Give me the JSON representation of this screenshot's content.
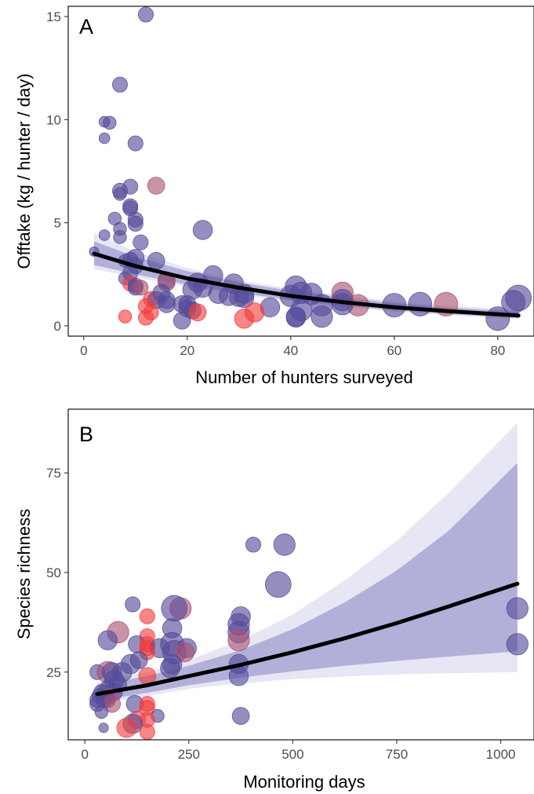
{
  "colors": {
    "point_blue": "#544a9a",
    "point_red": "#f23b3b",
    "point_mix": "#a9526f",
    "ci_outer": "#e7e6f5",
    "ci_inner": "#b2b0d8",
    "fit_line": "#000000"
  },
  "chart_data": [
    {
      "type": "scatter",
      "panel_label": "A",
      "xlabel": "Number of hunters surveyed",
      "ylabel": "Offtake (kg / hunter / day)",
      "xlim": [
        -3,
        87
      ],
      "ylim": [
        -0.5,
        15.5
      ],
      "xticks": [
        0,
        20,
        40,
        60,
        80
      ],
      "yticks": [
        0,
        5,
        10,
        15
      ],
      "grid": false,
      "points": [
        {
          "x": 12,
          "y": 15.1,
          "r": 2,
          "c": "b"
        },
        {
          "x": 7,
          "y": 11.7,
          "r": 2,
          "c": "b"
        },
        {
          "x": 4,
          "y": 9.9,
          "r": 1,
          "c": "b"
        },
        {
          "x": 5,
          "y": 9.85,
          "r": 1.5,
          "c": "b"
        },
        {
          "x": 4,
          "y": 9.1,
          "r": 1,
          "c": "b"
        },
        {
          "x": 10,
          "y": 8.85,
          "r": 2,
          "c": "b"
        },
        {
          "x": 9,
          "y": 6.75,
          "r": 2,
          "c": "b"
        },
        {
          "x": 14,
          "y": 6.8,
          "r": 2.5,
          "c": "m"
        },
        {
          "x": 7,
          "y": 6.55,
          "r": 2,
          "c": "b"
        },
        {
          "x": 7,
          "y": 6.4,
          "r": 1.5,
          "c": "b"
        },
        {
          "x": 9,
          "y": 5.8,
          "r": 2,
          "c": "b"
        },
        {
          "x": 9,
          "y": 5.7,
          "r": 2,
          "c": "b"
        },
        {
          "x": 6,
          "y": 5.2,
          "r": 1.5,
          "c": "b"
        },
        {
          "x": 10,
          "y": 5.15,
          "r": 2,
          "c": "b"
        },
        {
          "x": 10,
          "y": 4.95,
          "r": 2,
          "c": "b"
        },
        {
          "x": 7,
          "y": 4.7,
          "r": 1.5,
          "c": "b"
        },
        {
          "x": 23,
          "y": 4.65,
          "r": 3,
          "c": "b"
        },
        {
          "x": 4,
          "y": 4.4,
          "r": 1,
          "c": "b"
        },
        {
          "x": 7,
          "y": 4.3,
          "r": 1.5,
          "c": "b"
        },
        {
          "x": 11,
          "y": 4.05,
          "r": 2,
          "c": "b"
        },
        {
          "x": 2,
          "y": 3.6,
          "r": 0.7,
          "c": "b"
        },
        {
          "x": 10,
          "y": 3.3,
          "r": 2.5,
          "c": "b"
        },
        {
          "x": 8,
          "y": 3.15,
          "r": 1.5,
          "c": "b"
        },
        {
          "x": 9,
          "y": 3.2,
          "r": 2,
          "c": "b"
        },
        {
          "x": 14,
          "y": 3.15,
          "r": 2.5,
          "c": "b"
        },
        {
          "x": 10,
          "y": 2.9,
          "r": 2,
          "c": "b"
        },
        {
          "x": 9,
          "y": 2.55,
          "r": 2,
          "c": "b"
        },
        {
          "x": 25,
          "y": 2.45,
          "r": 3,
          "c": "b"
        },
        {
          "x": 8,
          "y": 2.3,
          "r": 1.5,
          "c": "b"
        },
        {
          "x": 16,
          "y": 2.2,
          "r": 2.5,
          "c": "b"
        },
        {
          "x": 16,
          "y": 2.1,
          "r": 2.5,
          "c": "m"
        },
        {
          "x": 22,
          "y": 2.1,
          "r": 3,
          "c": "b"
        },
        {
          "x": 9,
          "y": 2.05,
          "r": 2,
          "c": "r"
        },
        {
          "x": 29,
          "y": 2.05,
          "r": 3,
          "c": "b"
        },
        {
          "x": 10,
          "y": 1.95,
          "r": 2,
          "c": "b"
        },
        {
          "x": 10,
          "y": 1.85,
          "r": 2,
          "c": "b"
        },
        {
          "x": 11,
          "y": 1.85,
          "r": 2,
          "c": "m"
        },
        {
          "x": 23,
          "y": 1.85,
          "r": 3,
          "c": "b"
        },
        {
          "x": 41,
          "y": 1.9,
          "r": 3.5,
          "c": "b"
        },
        {
          "x": 21,
          "y": 1.75,
          "r": 3,
          "c": "b"
        },
        {
          "x": 15,
          "y": 1.6,
          "r": 2.5,
          "c": "b"
        },
        {
          "x": 26,
          "y": 1.55,
          "r": 3,
          "c": "b"
        },
        {
          "x": 31,
          "y": 1.55,
          "r": 3,
          "c": "b"
        },
        {
          "x": 42,
          "y": 1.6,
          "r": 3.5,
          "c": "b"
        },
        {
          "x": 44,
          "y": 1.55,
          "r": 3.5,
          "c": "b"
        },
        {
          "x": 50,
          "y": 1.6,
          "r": 3.5,
          "c": "m"
        },
        {
          "x": 28,
          "y": 1.45,
          "r": 3,
          "c": "b"
        },
        {
          "x": 30,
          "y": 1.4,
          "r": 3,
          "c": "b"
        },
        {
          "x": 40,
          "y": 1.45,
          "r": 3.5,
          "c": "b"
        },
        {
          "x": 31,
          "y": 1.35,
          "r": 3,
          "c": "b"
        },
        {
          "x": 13,
          "y": 1.3,
          "r": 2,
          "c": "r"
        },
        {
          "x": 14,
          "y": 1.25,
          "r": 2.5,
          "c": "b"
        },
        {
          "x": 16,
          "y": 1.25,
          "r": 2.5,
          "c": "b"
        },
        {
          "x": 50,
          "y": 1.25,
          "r": 3.5,
          "c": "b"
        },
        {
          "x": 53,
          "y": 1.0,
          "r": 3.5,
          "c": "m"
        },
        {
          "x": 16,
          "y": 1.05,
          "r": 2.5,
          "c": "b"
        },
        {
          "x": 19,
          "y": 1.05,
          "r": 2.5,
          "c": "b"
        },
        {
          "x": 20,
          "y": 1.05,
          "r": 2.5,
          "c": "b"
        },
        {
          "x": 46,
          "y": 1.0,
          "r": 3.5,
          "c": "b"
        },
        {
          "x": 50,
          "y": 1.05,
          "r": 3.5,
          "c": "b"
        },
        {
          "x": 60,
          "y": 1.0,
          "r": 4,
          "c": "b"
        },
        {
          "x": 65,
          "y": 1.05,
          "r": 4,
          "c": "b"
        },
        {
          "x": 70,
          "y": 1.05,
          "r": 4,
          "c": "m"
        },
        {
          "x": 12,
          "y": 0.95,
          "r": 2,
          "c": "r"
        },
        {
          "x": 36,
          "y": 0.9,
          "r": 3,
          "c": "b"
        },
        {
          "x": 20,
          "y": 0.85,
          "r": 2.5,
          "c": "b"
        },
        {
          "x": 21,
          "y": 0.75,
          "r": 2.5,
          "c": "b"
        },
        {
          "x": 42,
          "y": 0.75,
          "r": 3.5,
          "c": "b"
        },
        {
          "x": 13,
          "y": 0.65,
          "r": 2,
          "c": "r"
        },
        {
          "x": 22,
          "y": 0.65,
          "r": 2.5,
          "c": "r"
        },
        {
          "x": 33,
          "y": 0.65,
          "r": 3,
          "c": "r"
        },
        {
          "x": 8,
          "y": 0.45,
          "r": 1.5,
          "c": "r"
        },
        {
          "x": 12,
          "y": 0.4,
          "r": 2,
          "c": "r"
        },
        {
          "x": 41,
          "y": 0.45,
          "r": 3,
          "c": "b"
        },
        {
          "x": 41,
          "y": 0.4,
          "r": 3,
          "c": "b"
        },
        {
          "x": 46,
          "y": 0.45,
          "r": 3.5,
          "c": "b"
        },
        {
          "x": 31,
          "y": 0.35,
          "r": 3,
          "c": "r"
        },
        {
          "x": 80,
          "y": 0.35,
          "r": 4,
          "c": "b"
        },
        {
          "x": 19,
          "y": 0.25,
          "r": 2.5,
          "c": "b"
        },
        {
          "x": 83,
          "y": 1.15,
          "r": 4,
          "c": "b"
        },
        {
          "x": 84,
          "y": 1.35,
          "r": 4.5,
          "c": "b"
        }
      ],
      "fit": {
        "x": [
          2,
          10,
          20,
          30,
          40,
          50,
          60,
          70,
          84
        ],
        "y": [
          3.5,
          2.9,
          2.3,
          1.85,
          1.45,
          1.15,
          0.9,
          0.72,
          0.5
        ],
        "inner_lower": [
          2.95,
          2.5,
          2.0,
          1.6,
          1.25,
          0.98,
          0.75,
          0.58,
          0.38
        ],
        "inner_upper": [
          4.1,
          3.35,
          2.65,
          2.1,
          1.7,
          1.38,
          1.1,
          0.9,
          0.68
        ],
        "outer_lower": [
          2.75,
          2.35,
          1.9,
          1.52,
          1.18,
          0.92,
          0.69,
          0.52,
          0.32
        ],
        "outer_upper": [
          4.5,
          3.6,
          2.8,
          2.2,
          1.8,
          1.48,
          1.2,
          0.98,
          0.78
        ]
      }
    },
    {
      "type": "scatter",
      "panel_label": "B",
      "xlabel": "Monitoring days",
      "ylabel": "Species richness",
      "xlim": [
        -40,
        1080
      ],
      "ylim": [
        8,
        91
      ],
      "xticks": [
        0,
        250,
        500,
        750,
        1000
      ],
      "yticks": [
        25,
        50,
        75
      ],
      "grid": false,
      "points": [
        {
          "x": 480,
          "y": 57,
          "r": 3.5,
          "c": "b"
        },
        {
          "x": 405,
          "y": 57,
          "r": 2,
          "c": "b"
        },
        {
          "x": 465,
          "y": 47,
          "r": 4.5,
          "c": "b"
        },
        {
          "x": 115,
          "y": 42,
          "r": 2,
          "c": "b"
        },
        {
          "x": 230,
          "y": 41,
          "r": 3.5,
          "c": "m"
        },
        {
          "x": 215,
          "y": 41,
          "r": 4.5,
          "c": "b"
        },
        {
          "x": 1040,
          "y": 41,
          "r": 3.5,
          "c": "b"
        },
        {
          "x": 150,
          "y": 39,
          "r": 2,
          "c": "r"
        },
        {
          "x": 375,
          "y": 39,
          "r": 3,
          "c": "b"
        },
        {
          "x": 370,
          "y": 37,
          "r": 3.5,
          "c": "b"
        },
        {
          "x": 210,
          "y": 36,
          "r": 3,
          "c": "b"
        },
        {
          "x": 370,
          "y": 35,
          "r": 3.5,
          "c": "b"
        },
        {
          "x": 80,
          "y": 35,
          "r": 3.5,
          "c": "m"
        },
        {
          "x": 150,
          "y": 34,
          "r": 2,
          "c": "r"
        },
        {
          "x": 370,
          "y": 33,
          "r": 3.5,
          "c": "m"
        },
        {
          "x": 55,
          "y": 33,
          "r": 3,
          "c": "b"
        },
        {
          "x": 125,
          "y": 32,
          "r": 2.5,
          "c": "b"
        },
        {
          "x": 150,
          "y": 32,
          "r": 2,
          "c": "r"
        },
        {
          "x": 210,
          "y": 32,
          "r": 4,
          "c": "b"
        },
        {
          "x": 1040,
          "y": 32,
          "r": 3.5,
          "c": "b"
        },
        {
          "x": 150,
          "y": 31,
          "r": 2,
          "c": "r"
        },
        {
          "x": 180,
          "y": 31,
          "r": 3,
          "c": "b"
        },
        {
          "x": 245,
          "y": 31,
          "r": 3,
          "c": "b"
        },
        {
          "x": 150,
          "y": 30,
          "r": 2,
          "c": "r"
        },
        {
          "x": 215,
          "y": 30,
          "r": 4,
          "c": "b"
        },
        {
          "x": 240,
          "y": 30,
          "r": 3,
          "c": "m"
        },
        {
          "x": 130,
          "y": 28,
          "r": 2.5,
          "c": "b"
        },
        {
          "x": 110,
          "y": 27,
          "r": 3,
          "c": "b"
        },
        {
          "x": 210,
          "y": 27,
          "r": 3,
          "c": "b"
        },
        {
          "x": 370,
          "y": 27,
          "r": 3,
          "c": "b"
        },
        {
          "x": 205,
          "y": 26,
          "r": 3,
          "c": "b"
        },
        {
          "x": 30,
          "y": 25,
          "r": 2,
          "c": "b"
        },
        {
          "x": 55,
          "y": 25,
          "r": 3.5,
          "c": "m"
        },
        {
          "x": 90,
          "y": 25,
          "r": 3,
          "c": "b"
        },
        {
          "x": 65,
          "y": 25,
          "r": 3,
          "c": "b"
        },
        {
          "x": 370,
          "y": 24,
          "r": 3,
          "c": "b"
        },
        {
          "x": 150,
          "y": 24,
          "r": 2.5,
          "c": "r"
        },
        {
          "x": 70,
          "y": 23,
          "r": 3,
          "c": "b"
        },
        {
          "x": 80,
          "y": 22,
          "r": 2.5,
          "c": "b"
        },
        {
          "x": 55,
          "y": 21,
          "r": 2,
          "c": "b"
        },
        {
          "x": 40,
          "y": 20,
          "r": 2,
          "c": "b"
        },
        {
          "x": 70,
          "y": 20,
          "r": 2.5,
          "c": "b"
        },
        {
          "x": 35,
          "y": 19,
          "r": 2,
          "c": "b"
        },
        {
          "x": 60,
          "y": 19,
          "r": 2,
          "c": "m"
        },
        {
          "x": 30,
          "y": 18,
          "r": 2,
          "c": "b"
        },
        {
          "x": 45,
          "y": 18,
          "r": 2,
          "c": "b"
        },
        {
          "x": 55,
          "y": 18,
          "r": 2,
          "c": "b"
        },
        {
          "x": 65,
          "y": 17,
          "r": 2.5,
          "c": "m"
        },
        {
          "x": 120,
          "y": 17,
          "r": 2.5,
          "c": "b"
        },
        {
          "x": 30,
          "y": 17,
          "r": 2,
          "c": "b"
        },
        {
          "x": 150,
          "y": 17,
          "r": 2,
          "c": "r"
        },
        {
          "x": 150,
          "y": 16,
          "r": 2,
          "c": "r"
        },
        {
          "x": 40,
          "y": 15,
          "r": 1.5,
          "c": "b"
        },
        {
          "x": 175,
          "y": 14,
          "r": 1.5,
          "c": "b"
        },
        {
          "x": 375,
          "y": 14,
          "r": 2.5,
          "c": "b"
        },
        {
          "x": 150,
          "y": 13,
          "r": 2,
          "c": "r"
        },
        {
          "x": 125,
          "y": 13,
          "r": 2.5,
          "c": "r"
        },
        {
          "x": 115,
          "y": 12,
          "r": 3,
          "c": "b"
        },
        {
          "x": 100,
          "y": 11,
          "r": 3,
          "c": "r"
        },
        {
          "x": 45,
          "y": 11,
          "r": 0.7,
          "c": "b"
        },
        {
          "x": 150,
          "y": 10,
          "r": 2,
          "c": "r"
        }
      ],
      "fit": {
        "x": [
          30,
          150,
          250,
          375,
          500,
          625,
          750,
          875,
          1040
        ],
        "y": [
          19.5,
          21.7,
          24.0,
          26.8,
          30.0,
          33.5,
          37.3,
          41.5,
          47.2
        ],
        "inner_lower": [
          17.7,
          19.8,
          21.7,
          23.6,
          25.2,
          26.6,
          27.8,
          28.9,
          30.2
        ],
        "inner_upper": [
          21.6,
          24.0,
          26.6,
          30.5,
          35.8,
          42.5,
          50.5,
          60.5,
          77.5
        ],
        "outer_lower": [
          17.0,
          19.0,
          20.8,
          22.2,
          23.2,
          23.9,
          24.4,
          24.7,
          25.0
        ],
        "outer_upper": [
          22.5,
          25.0,
          28.0,
          33.0,
          39.5,
          48.0,
          58.0,
          70.0,
          87.5
        ]
      }
    }
  ]
}
